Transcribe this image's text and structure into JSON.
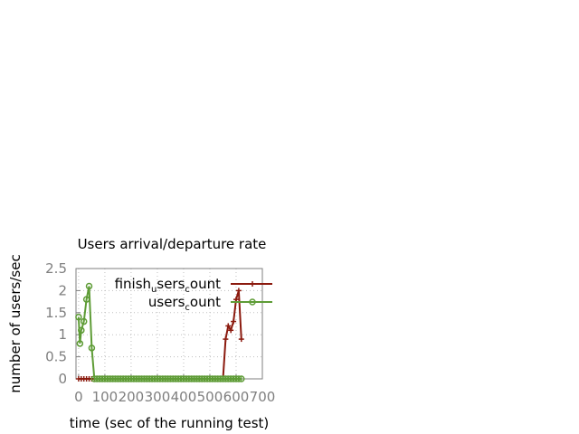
{
  "chart_data": {
    "type": "line",
    "title": "Users arrival/departure rate",
    "xlabel": "time (sec of the running test)",
    "ylabel": "number of users/sec",
    "xlim": [
      -10,
      700
    ],
    "ylim": [
      0,
      2.5
    ],
    "x_ticks": [
      0,
      100,
      200,
      300,
      400,
      500,
      600,
      700
    ],
    "x_tick_labels": [
      "0",
      "100",
      "200",
      "300",
      "400",
      "500",
      "600",
      "700"
    ],
    "y_ticks": [
      0,
      0.5,
      1,
      1.5,
      2,
      2.5
    ],
    "y_tick_labels": [
      "0",
      "0.5",
      "1",
      "1.5",
      "2",
      "2.5"
    ],
    "grid": true,
    "legend_position": "top-right",
    "series": [
      {
        "name": "finish_users_count",
        "legend_main": [
          "finish",
          "sers",
          "ount"
        ],
        "legend_subs": [
          "u",
          "c"
        ],
        "color": "#8b1a0e",
        "marker": "plus",
        "x": [
          0,
          10,
          20,
          30,
          40,
          50,
          60,
          70,
          80,
          90,
          100,
          110,
          120,
          130,
          140,
          150,
          160,
          170,
          180,
          190,
          200,
          210,
          220,
          230,
          240,
          250,
          260,
          270,
          280,
          290,
          300,
          310,
          320,
          330,
          340,
          350,
          360,
          370,
          380,
          390,
          400,
          410,
          420,
          430,
          440,
          450,
          460,
          470,
          480,
          490,
          500,
          510,
          520,
          530,
          540,
          550,
          560,
          570,
          580,
          590,
          600,
          610,
          620
        ],
        "y": [
          0,
          0,
          0,
          0,
          0,
          0,
          0,
          0,
          0,
          0,
          0,
          0,
          0,
          0,
          0,
          0,
          0,
          0,
          0,
          0,
          0,
          0,
          0,
          0,
          0,
          0,
          0,
          0,
          0,
          0,
          0,
          0,
          0,
          0,
          0,
          0,
          0,
          0,
          0,
          0,
          0,
          0,
          0,
          0,
          0,
          0,
          0,
          0,
          0,
          0,
          0,
          0,
          0,
          0,
          0,
          0,
          0.9,
          1.2,
          1.1,
          1.3,
          1.8,
          2.0,
          0.9
        ]
      },
      {
        "name": "users_count",
        "legend_main": [
          "users",
          "ount"
        ],
        "legend_subs": [
          "c"
        ],
        "color": "#5e9c36",
        "marker": "circle",
        "x": [
          0,
          5,
          10,
          20,
          30,
          40,
          50,
          60,
          70,
          80,
          90,
          100,
          110,
          120,
          130,
          140,
          150,
          160,
          170,
          180,
          190,
          200,
          210,
          220,
          230,
          240,
          250,
          260,
          270,
          280,
          290,
          300,
          310,
          320,
          330,
          340,
          350,
          360,
          370,
          380,
          390,
          400,
          410,
          420,
          430,
          440,
          450,
          460,
          470,
          480,
          490,
          500,
          510,
          520,
          530,
          540,
          550,
          560,
          570,
          580,
          590,
          600,
          610,
          620
        ],
        "y": [
          1.4,
          0.8,
          1.1,
          1.3,
          1.8,
          2.1,
          0.7,
          0,
          0,
          0,
          0,
          0,
          0,
          0,
          0,
          0,
          0,
          0,
          0,
          0,
          0,
          0,
          0,
          0,
          0,
          0,
          0,
          0,
          0,
          0,
          0,
          0,
          0,
          0,
          0,
          0,
          0,
          0,
          0,
          0,
          0,
          0,
          0,
          0,
          0,
          0,
          0,
          0,
          0,
          0,
          0,
          0,
          0,
          0,
          0,
          0,
          0,
          0,
          0,
          0,
          0,
          0,
          0,
          0
        ]
      }
    ]
  }
}
